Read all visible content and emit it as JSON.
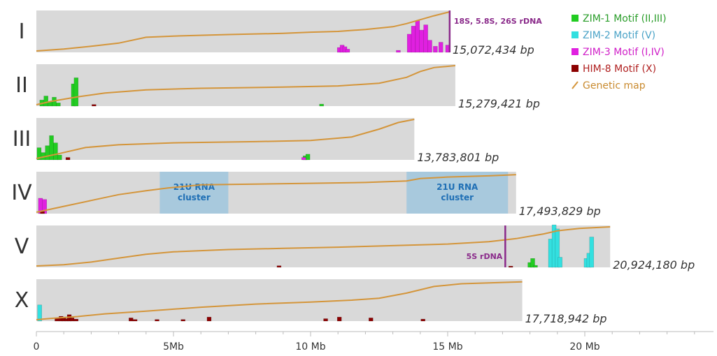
{
  "chart_data": {
    "type": "bar",
    "x_axis": {
      "ticks": [
        {
          "value": 0,
          "label": "0"
        },
        {
          "value": 5,
          "label": "5Mb"
        },
        {
          "value": 10,
          "label": "10 Mb"
        },
        {
          "value": 15,
          "label": "15 Mb"
        },
        {
          "value": 20,
          "label": "20 Mb"
        }
      ],
      "range_mb": [
        0,
        25
      ]
    },
    "colors": {
      "background": "#d9d9d9",
      "genetic_map": "#d4953a",
      "zim1": "#22cc22",
      "zim2": "#33e0e0",
      "zim3": "#e020e0",
      "him8": "#8b0000",
      "region": "#9fc5dd",
      "annotation": "#8a2a8a"
    },
    "legend": {
      "items": [
        {
          "key": "zim1",
          "label": "ZIM-1 Motif (II,III)",
          "color": "#2a9d2a",
          "swatch": "#22cc22"
        },
        {
          "key": "zim2",
          "label": "ZIM-2 Motif (V)",
          "color": "#4ba3c7",
          "swatch": "#33e0e0"
        },
        {
          "key": "zim3",
          "label": "ZIM-3 Motif (I,IV)",
          "color": "#d020c8",
          "swatch": "#e020e0"
        },
        {
          "key": "him8",
          "label": "HIM-8 Motif (X)",
          "color": "#b02020",
          "swatch": "#8b0000"
        },
        {
          "key": "map",
          "label": "Genetic map",
          "color": "#c98a2e",
          "swatch": "#d4953a"
        }
      ]
    },
    "chromosomes": [
      {
        "name": "I",
        "length_mb": 15.072,
        "size_label": "15,072,434 bp",
        "genetic_map": [
          [
            0,
            0
          ],
          [
            1,
            0.05
          ],
          [
            2,
            0.12
          ],
          [
            3,
            0.2
          ],
          [
            4,
            0.35
          ],
          [
            5,
            0.38
          ],
          [
            7,
            0.42
          ],
          [
            9,
            0.45
          ],
          [
            10,
            0.48
          ],
          [
            11,
            0.5
          ],
          [
            12,
            0.55
          ],
          [
            13,
            0.62
          ],
          [
            13.5,
            0.7
          ],
          [
            14,
            0.8
          ],
          [
            14.5,
            0.9
          ],
          [
            15.072,
            1
          ]
        ],
        "motifs": [
          {
            "type": "zim3",
            "bins": [
              [
                11.05,
                0.12
              ],
              [
                11.15,
                0.18
              ],
              [
                11.25,
                0.14
              ],
              [
                11.35,
                0.08
              ],
              [
                13.2,
                0.05
              ],
              [
                13.6,
                0.45
              ],
              [
                13.75,
                0.65
              ],
              [
                13.9,
                0.78
              ],
              [
                14.05,
                0.55
              ],
              [
                14.2,
                0.68
              ],
              [
                14.35,
                0.3
              ],
              [
                14.55,
                0.15
              ],
              [
                14.75,
                0.25
              ],
              [
                15.0,
                0.18
              ]
            ]
          }
        ],
        "regions": [],
        "annotations": [
          {
            "pos_mb": 15.072,
            "label": "18S, 5.8S, 26S rDNA"
          }
        ]
      },
      {
        "name": "II",
        "length_mb": 15.279,
        "size_label": "15,279,421 bp",
        "genetic_map": [
          [
            0,
            0
          ],
          [
            0.5,
            0.08
          ],
          [
            1.5,
            0.2
          ],
          [
            2.5,
            0.3
          ],
          [
            4,
            0.38
          ],
          [
            6,
            0.42
          ],
          [
            9,
            0.45
          ],
          [
            11,
            0.48
          ],
          [
            12.5,
            0.55
          ],
          [
            13.5,
            0.7
          ],
          [
            14,
            0.85
          ],
          [
            14.5,
            0.95
          ],
          [
            15.279,
            1
          ]
        ],
        "motifs": [
          {
            "type": "zim1",
            "bins": [
              [
                0.2,
                0.15
              ],
              [
                0.35,
                0.25
              ],
              [
                0.5,
                0.1
              ],
              [
                0.65,
                0.22
              ],
              [
                0.8,
                0.08
              ],
              [
                1.35,
                0.55
              ],
              [
                1.45,
                0.7
              ],
              [
                10.4,
                0.05
              ]
            ]
          },
          {
            "type": "him8",
            "bins": [
              [
                2.1,
                0.04
              ]
            ]
          }
        ],
        "regions": [],
        "annotations": []
      },
      {
        "name": "III",
        "length_mb": 13.784,
        "size_label": "13,783,801 bp",
        "genetic_map": [
          [
            0,
            0
          ],
          [
            0.8,
            0.12
          ],
          [
            1.8,
            0.28
          ],
          [
            3,
            0.35
          ],
          [
            5,
            0.4
          ],
          [
            8,
            0.43
          ],
          [
            10,
            0.46
          ],
          [
            11.5,
            0.55
          ],
          [
            12.5,
            0.75
          ],
          [
            13.2,
            0.92
          ],
          [
            13.784,
            1
          ]
        ],
        "motifs": [
          {
            "type": "zim1",
            "bins": [
              [
                0.1,
                0.3
              ],
              [
                0.25,
                0.18
              ],
              [
                0.4,
                0.35
              ],
              [
                0.55,
                0.6
              ],
              [
                0.7,
                0.42
              ],
              [
                0.85,
                0.12
              ],
              [
                9.8,
                0.1
              ],
              [
                9.9,
                0.14
              ]
            ]
          },
          {
            "type": "zim3",
            "bins": [
              [
                9.75,
                0.06
              ]
            ]
          },
          {
            "type": "him8",
            "bins": [
              [
                1.15,
                0.06
              ]
            ]
          }
        ],
        "regions": [],
        "annotations": []
      },
      {
        "name": "IV",
        "length_mb": 17.494,
        "size_label": "17,493,829 bp",
        "genetic_map": [
          [
            0,
            0
          ],
          [
            1,
            0.15
          ],
          [
            2,
            0.3
          ],
          [
            3,
            0.45
          ],
          [
            4,
            0.55
          ],
          [
            4.8,
            0.62
          ],
          [
            6,
            0.7
          ],
          [
            8,
            0.72
          ],
          [
            10,
            0.74
          ],
          [
            12,
            0.76
          ],
          [
            13.5,
            0.8
          ],
          [
            14,
            0.86
          ],
          [
            15,
            0.9
          ],
          [
            16.5,
            0.93
          ],
          [
            17.494,
            0.96
          ]
        ],
        "motifs": [
          {
            "type": "zim3",
            "bins": [
              [
                0.15,
                0.38
              ],
              [
                0.3,
                0.35
              ]
            ]
          },
          {
            "type": "him8",
            "bins": [
              [
                0.22,
                0.05
              ]
            ]
          }
        ],
        "regions": [
          {
            "start_mb": 4.5,
            "end_mb": 7.0,
            "label": [
              "21U RNA",
              "cluster"
            ]
          },
          {
            "start_mb": 13.5,
            "end_mb": 17.2,
            "label": [
              "21U RNA",
              "cluster"
            ]
          }
        ],
        "annotations": []
      },
      {
        "name": "V",
        "length_mb": 20.924,
        "size_label": "20,924,180 bp",
        "genetic_map": [
          [
            0,
            0
          ],
          [
            1,
            0.03
          ],
          [
            2,
            0.1
          ],
          [
            3,
            0.2
          ],
          [
            4,
            0.3
          ],
          [
            5,
            0.36
          ],
          [
            7,
            0.42
          ],
          [
            9,
            0.45
          ],
          [
            11,
            0.48
          ],
          [
            13,
            0.52
          ],
          [
            15,
            0.56
          ],
          [
            16.5,
            0.62
          ],
          [
            17.5,
            0.7
          ],
          [
            18.5,
            0.82
          ],
          [
            19,
            0.9
          ],
          [
            19.8,
            0.96
          ],
          [
            20.924,
            1
          ]
        ],
        "motifs": [
          {
            "type": "zim2",
            "bins": [
              [
                18.75,
                0.7
              ],
              [
                18.88,
                1.05
              ],
              [
                19.0,
                0.95
              ],
              [
                19.1,
                0.25
              ],
              [
                20.05,
                0.22
              ],
              [
                20.15,
                0.35
              ],
              [
                20.25,
                0.75
              ]
            ]
          },
          {
            "type": "zim1",
            "bins": [
              [
                18.0,
                0.12
              ],
              [
                18.1,
                0.22
              ],
              [
                18.2,
                0.05
              ]
            ]
          },
          {
            "type": "him8",
            "bins": [
              [
                8.85,
                0.04
              ],
              [
                17.3,
                0.03
              ]
            ]
          }
        ],
        "regions": [],
        "annotations": [
          {
            "pos_mb": 17.1,
            "label": "5S rDNA"
          }
        ]
      },
      {
        "name": "X",
        "length_mb": 17.719,
        "size_label": "17,718,942 bp",
        "genetic_map": [
          [
            0,
            0
          ],
          [
            0.5,
            0.03
          ],
          [
            1.5,
            0.08
          ],
          [
            2.5,
            0.15
          ],
          [
            4,
            0.22
          ],
          [
            6,
            0.32
          ],
          [
            8,
            0.4
          ],
          [
            10,
            0.45
          ],
          [
            11.5,
            0.5
          ],
          [
            12.5,
            0.55
          ],
          [
            13.5,
            0.68
          ],
          [
            14.5,
            0.85
          ],
          [
            15.5,
            0.92
          ],
          [
            17.719,
            0.97
          ]
        ],
        "motifs": [
          {
            "type": "zim2",
            "bins": [
              [
                0.12,
                0.4
              ]
            ]
          },
          {
            "type": "him8",
            "bins": [
              [
                0.75,
                0.08
              ],
              [
                0.9,
                0.12
              ],
              [
                1.0,
                0.1
              ],
              [
                1.1,
                0.06
              ],
              [
                1.2,
                0.16
              ],
              [
                1.3,
                0.08
              ],
              [
                1.45,
                0.05
              ],
              [
                3.45,
                0.08
              ],
              [
                3.6,
                0.04
              ],
              [
                4.4,
                0.04
              ],
              [
                5.35,
                0.04
              ],
              [
                6.3,
                0.1
              ],
              [
                10.55,
                0.06
              ],
              [
                11.05,
                0.1
              ],
              [
                12.2,
                0.08
              ],
              [
                14.1,
                0.05
              ]
            ]
          }
        ],
        "regions": [],
        "annotations": []
      }
    ]
  }
}
